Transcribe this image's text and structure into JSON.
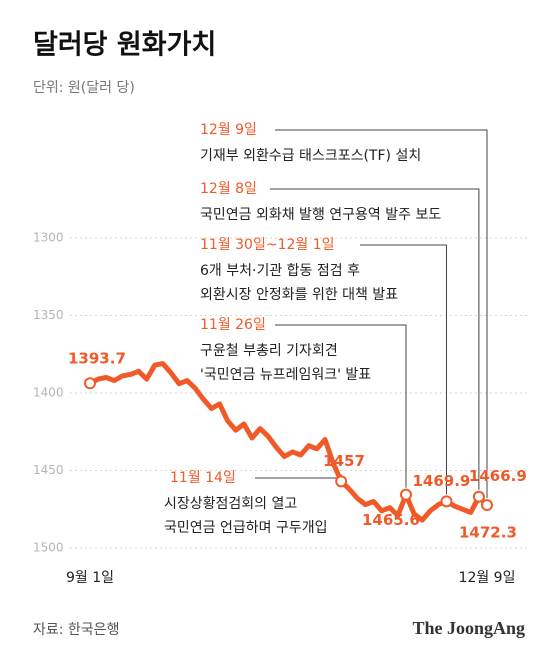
{
  "chart_data": {
    "type": "line",
    "title": "달러당 원화가치",
    "subtitle": "단위: 원(달러 당)",
    "categories": [
      "9월 1일",
      null,
      null,
      null,
      null,
      null,
      null,
      null,
      null,
      null,
      null,
      null,
      null,
      null,
      null,
      null,
      null,
      null,
      null,
      null,
      null,
      null,
      null,
      null,
      null,
      null,
      null,
      null,
      null,
      null,
      null,
      null,
      null,
      null,
      null,
      null,
      null,
      null,
      null,
      null,
      null,
      null,
      null,
      null,
      null,
      null,
      null,
      null,
      null,
      "12월 9일"
    ],
    "values": [
      1393.7,
      1391,
      1390,
      1392,
      1389,
      1388,
      1386,
      1391,
      1382,
      1381,
      1387,
      1394,
      1392,
      1397,
      1404,
      1410,
      1407,
      1418,
      1424,
      1420,
      1429,
      1423,
      1428,
      1435,
      1441,
      1438,
      1440,
      1434,
      1436,
      1430,
      1445,
      1457,
      1462,
      1468,
      1472,
      1470,
      1476,
      1474,
      1479,
      1465.6,
      1478,
      1482,
      1476,
      1472,
      1469.9,
      1473,
      1475,
      1477,
      1466.9,
      1472.3
    ],
    "color": "#f05a28",
    "ylim": [
      1300,
      1500
    ],
    "yticks": [
      1300,
      1350,
      1400,
      1450,
      1500
    ],
    "y_inverted": true,
    "grid": true,
    "annotations": [
      {
        "label": "12월 9일",
        "lines": [
          "기재부 외환수급 태스크포스(TF) 설치"
        ]
      },
      {
        "label": "12월 8일",
        "lines": [
          "국민연금 외화채 발행 연구용역 발주 보도"
        ]
      },
      {
        "label": "11월 30일~12월 1일",
        "lines": [
          "6개 부처·기관 합동 점검 후",
          "외환시장 안정화를 위한 대책 발표"
        ]
      },
      {
        "label": "11월 26일",
        "lines": [
          "구윤철 부총리 기자회견",
          "'국민연금 뉴프레임워크' 발표"
        ]
      },
      {
        "label": "11월 14일",
        "lines": [
          "시장상황점검회의 열고",
          "국민연금 언급하며 구두개입"
        ]
      }
    ],
    "source": "자료: 한국은행",
    "brand": "The JoongAng"
  }
}
